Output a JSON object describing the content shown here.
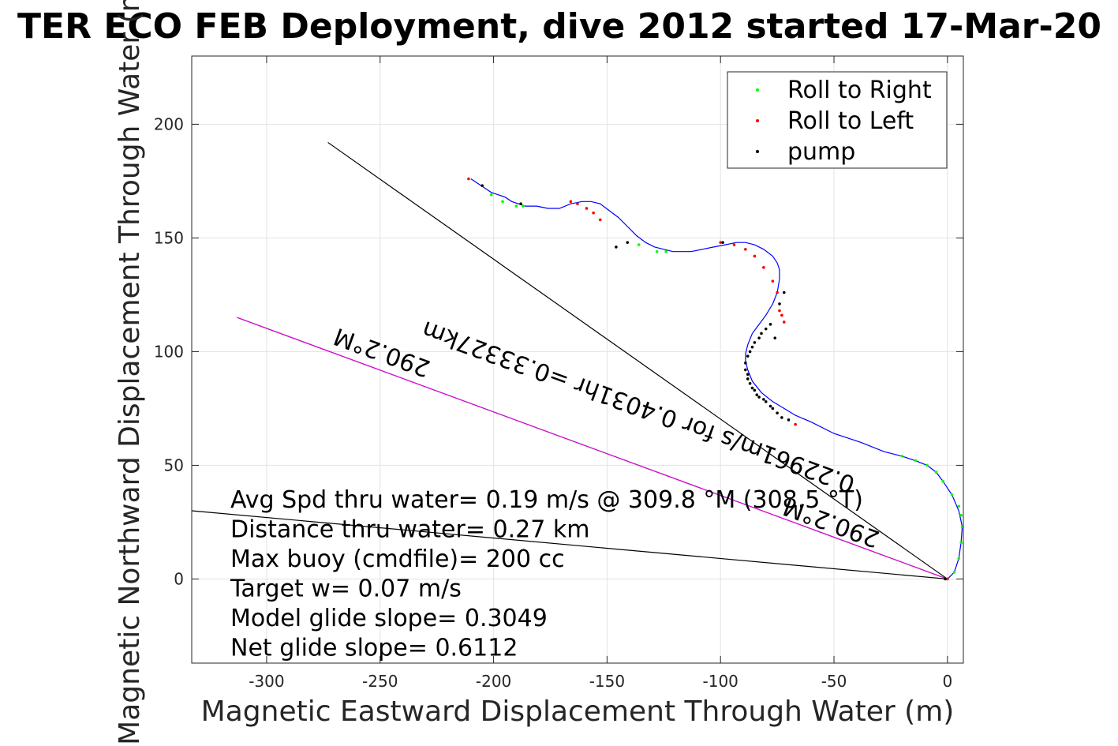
{
  "chart_data": {
    "type": "scatter",
    "title": "TER ECO FEB Deployment, dive 2012 started 17-Mar-20",
    "xlabel": "Magnetic Eastward Displacement Through Water (m)",
    "ylabel": "Magnetic Northward Displacement Through Water (m)",
    "xlim": [
      -333,
      7
    ],
    "ylim": [
      -37,
      230
    ],
    "xticks": [
      -300,
      -250,
      -200,
      -150,
      -100,
      -50,
      0
    ],
    "yticks": [
      0,
      50,
      100,
      150,
      200
    ],
    "grid": true,
    "legend_position": "top-right",
    "legend": [
      {
        "label": "Roll to Right",
        "color": "#00ff00"
      },
      {
        "label": "Roll to Left",
        "color": "#ff0000"
      },
      {
        "label": "pump",
        "color": "#000000"
      }
    ],
    "track": {
      "name": "dive track",
      "color": "#0000ff",
      "x": [
        0,
        3,
        5,
        6,
        6.5,
        5,
        2,
        -2,
        -5,
        -9,
        -14,
        -20,
        -28,
        -38,
        -50,
        -60,
        -67,
        -72,
        -77,
        -82,
        -86,
        -88,
        -89,
        -89,
        -88,
        -86,
        -83,
        -80,
        -77,
        -75,
        -74,
        -74,
        -75,
        -77,
        -81,
        -85,
        -89,
        -93,
        -98,
        -103,
        -108,
        -113,
        -117,
        -121,
        -125,
        -129,
        -133,
        -137,
        -141,
        -145,
        -149,
        -153,
        -157,
        -161,
        -166,
        -171,
        -176,
        -181,
        -186,
        -189,
        -192,
        -195,
        -198,
        -201,
        -204,
        -207,
        -210
      ],
      "y": [
        0,
        3,
        9,
        16,
        23,
        30,
        37,
        43,
        47,
        50,
        52,
        54,
        56,
        60,
        64,
        69,
        72,
        75,
        78,
        82,
        87,
        92,
        96,
        99,
        103,
        108,
        112,
        116,
        121,
        126,
        132,
        136,
        139,
        142,
        145,
        147,
        148,
        148,
        147,
        146,
        145,
        144,
        144,
        144,
        145,
        146,
        148,
        151,
        155,
        159,
        162,
        165,
        166,
        166,
        165,
        163,
        163,
        164,
        164,
        165,
        166,
        168,
        169,
        170,
        172,
        174,
        176
      ]
    },
    "series": [
      {
        "name": "Roll to Right",
        "color": "#00ff00",
        "x": [
          3,
          5,
          6,
          6.5,
          6,
          5,
          2,
          -2,
          -5,
          -9,
          -14,
          -20,
          -124,
          -128,
          -136,
          -187,
          -190,
          -196,
          -201
        ],
        "y": [
          3,
          9,
          16,
          23,
          28,
          32,
          37,
          43,
          47,
          50,
          52,
          54,
          144,
          144,
          147,
          164,
          164,
          166,
          169
        ]
      },
      {
        "name": "Roll to Left",
        "color": "#ff0000",
        "x": [
          0,
          -67,
          -72,
          -73,
          -74,
          -75,
          -77,
          -81,
          -85,
          -89,
          -94,
          -100,
          -153,
          -156,
          -159,
          -163,
          -166,
          -211
        ],
        "y": [
          0,
          68,
          113,
          116,
          118,
          126,
          131,
          137,
          142,
          145,
          147,
          148,
          158,
          161,
          163,
          165,
          166,
          176
        ]
      },
      {
        "name": "pump",
        "color": "#000000",
        "x": [
          -1,
          -70,
          -73,
          -75,
          -77,
          -78,
          -80,
          -81,
          -83,
          -84,
          -85,
          -86,
          -87,
          -88,
          -88,
          -89,
          -89,
          -88,
          -87,
          -86,
          -85,
          -83,
          -82,
          -80,
          -78,
          -76,
          -74,
          -72,
          -99,
          -141,
          -146,
          -188,
          -205
        ],
        "y": [
          0,
          70,
          71,
          73,
          75,
          76,
          78,
          79,
          80,
          81,
          83,
          84,
          86,
          88,
          90,
          92,
          95,
          98,
          100,
          102,
          104,
          106,
          108,
          110,
          112,
          106,
          121,
          126,
          148,
          148,
          146,
          165,
          173
        ]
      }
    ],
    "reference_lines": [
      {
        "name": "average heading",
        "color": "#000000",
        "from": [
          0,
          0
        ],
        "to": [
          -273,
          192
        ]
      },
      {
        "name": "heading 290.2",
        "color": "#000000",
        "from": [
          0,
          0
        ],
        "to": [
          -313,
          115
        ]
      },
      {
        "name": "heading 290.2 overlay",
        "color": "#ff00ff",
        "from": [
          0,
          0
        ],
        "to": [
          -313,
          115
        ]
      },
      {
        "name": "baseline",
        "color": "#000000",
        "from": [
          0,
          0
        ],
        "to": [
          -333,
          30
        ]
      }
    ],
    "line_labels": [
      {
        "text": "290.2°M",
        "x": -248,
        "y": 103,
        "rotate": 200
      },
      {
        "text": "0.22961m/s for 0.4031hr =0.33327km",
        "x": -135,
        "y": 79,
        "rotate": 200
      },
      {
        "text": "290.2°M",
        "x": -50,
        "y": 28,
        "rotate": 200
      }
    ],
    "annotations": [
      "Avg Spd thru water=  0.19 m/s @ 309.8 °M (308.5 °T)",
      "Distance thru water=  0.27 km",
      "Max buoy (cmdfile)= 200 cc",
      "Target w= 0.07 m/s",
      "Model glide slope= 0.3049",
      "Net glide slope= 0.6112"
    ]
  }
}
